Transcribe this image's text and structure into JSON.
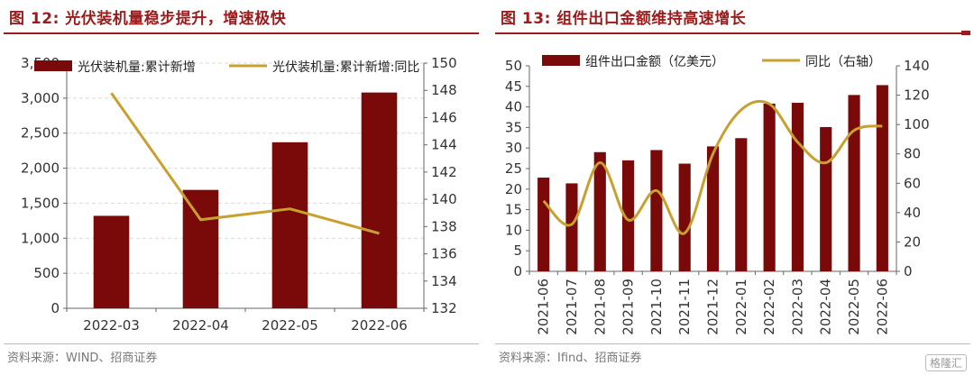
{
  "left": {
    "title": "图 12:  光伏装机量稳步提升，增速极快",
    "source": "资料来源：WIND、招商证券",
    "chart_data": {
      "type": "bar",
      "categories": [
        "2022-03",
        "2022-04",
        "2022-05",
        "2022-06"
      ],
      "series": [
        {
          "name": "光伏装机量:累计新增",
          "kind": "bar",
          "axis": "left",
          "color": "#7a0a0a",
          "values": [
            1320,
            1690,
            2370,
            3080
          ]
        },
        {
          "name": "光伏装机量:累计新增:同比",
          "kind": "line",
          "axis": "right",
          "color": "#c8a030",
          "values": [
            147.8,
            138.5,
            139.3,
            137.5
          ]
        }
      ],
      "ylim": [
        0,
        3500
      ],
      "yticks": [
        "0",
        "500",
        "1,000",
        "1,500",
        "2,000",
        "2,500",
        "3,000",
        "3,500"
      ],
      "y2lim": [
        132,
        150
      ],
      "y2ticks": [
        "132",
        "134",
        "136",
        "138",
        "140",
        "142",
        "144",
        "146",
        "148",
        "150"
      ],
      "grid": true,
      "legend": "top"
    }
  },
  "right": {
    "title": "图 13:  组件出口金额维持高速增长",
    "source": "资料来源：Ifind、招商证券",
    "watermark": "格隆汇",
    "chart_data": {
      "type": "bar",
      "categories": [
        "2021-06",
        "2021-07",
        "2021-08",
        "2021-09",
        "2021-10",
        "2021-11",
        "2021-12",
        "2022-01",
        "2022-02",
        "2022-03",
        "2022-04",
        "2022-05",
        "2022-06"
      ],
      "series": [
        {
          "name": "组件出口金额（亿美元）",
          "kind": "bar",
          "axis": "left",
          "color": "#7a0a0a",
          "values": [
            22.8,
            21.4,
            29.0,
            27.0,
            29.5,
            26.2,
            30.4,
            32.4,
            40.8,
            41.0,
            35.1,
            42.9,
            45.3
          ]
        },
        {
          "name": "同比（右轴）",
          "kind": "line",
          "axis": "right",
          "color": "#c8a030",
          "values": [
            48,
            32,
            74,
            35,
            55,
            26,
            80,
            110,
            114,
            88,
            74,
            96,
            99
          ]
        }
      ],
      "ylim": [
        0,
        50
      ],
      "yticks": [
        "0",
        "5",
        "10",
        "15",
        "20",
        "25",
        "30",
        "35",
        "40",
        "45",
        "50"
      ],
      "y2lim": [
        0,
        140
      ],
      "y2ticks": [
        "0",
        "20",
        "40",
        "60",
        "80",
        "100",
        "120",
        "140"
      ],
      "grid": false,
      "legend": "top"
    }
  }
}
